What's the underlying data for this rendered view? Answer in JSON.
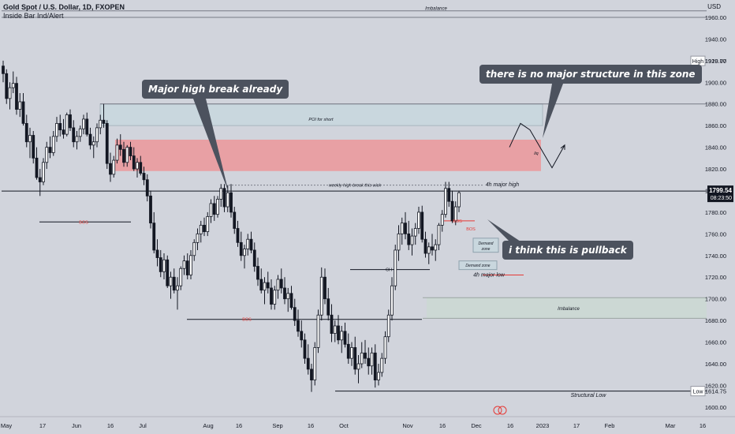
{
  "header": {
    "symbol_title": "Gold Spot / U.S. Dollar, 1D, FXOPEN",
    "indicator": "Inside Bar Ind/Alert"
  },
  "price_axis": {
    "currency": "USD"
  },
  "colors": {
    "background": "#d1d4dc",
    "candle": "#131722",
    "supply_zone": "#e8a0a4",
    "poi_zone": "#c9d7de",
    "imbalance_zone": "#ccd8d4",
    "demand_zone": "#c9d7de",
    "bos_label": "#e53935",
    "callout_bg": "#4c525e"
  },
  "callouts": [
    {
      "text": "Major high break already"
    },
    {
      "text": "there is no major structure in this zone"
    },
    {
      "text": "i think this is pullback"
    }
  ],
  "labels": {
    "imbalance_top": "Imbalance",
    "poi_for_short": "POI for short",
    "weekly_high_break": "weekly high break this wick",
    "four_h_major_high": "4h major high",
    "four_h_major_low": "4h major low",
    "demand_zone_a": "Demand zone",
    "demand_zone_b": "Demand zone",
    "imbalance_right": "Imbalance",
    "structural_low": "Structural Low",
    "bos_1": "BOS",
    "bos_2": "BOS",
    "bos_3": "BOS",
    "bos_4": "BOS",
    "ch": "CH",
    "liq": "liq",
    "high_tag": "High",
    "low_tag": "Low",
    "current_countdown": "08:23:50"
  },
  "chart_data": {
    "type": "candlestick",
    "symbol": "Gold Spot / U.S. Dollar",
    "timeframe": "1D",
    "y_axis": {
      "ticks": [
        1600,
        1620,
        1640,
        1660,
        1680,
        1700,
        1720,
        1740,
        1760,
        1780,
        1800,
        1820,
        1840,
        1860,
        1880,
        1900,
        1920,
        1940,
        1960
      ],
      "tick_labels": [
        "1600.00",
        "1620.00",
        "1640.00",
        "1660.00",
        "1680.00",
        "1700.00",
        "1720.00",
        "1740.00",
        "1760.00",
        "1780.00",
        "1800.00",
        "1820.00",
        "1840.00",
        "1860.00",
        "1880.00",
        "1900.00",
        "1920.00",
        "1940.00",
        "1960.00"
      ],
      "range": [
        1597,
        1976
      ]
    },
    "x_axis": {
      "tick_labels": [
        "May",
        "17",
        "Jun",
        "16",
        "Jul",
        "Aug",
        "16",
        "Sep",
        "16",
        "Oct",
        "Nov",
        "16",
        "Dec",
        "16",
        "2023",
        "17",
        "Feb",
        "Mar",
        "16"
      ]
    },
    "high_value": "1919.77",
    "low_value": "1614.75",
    "current_price": "1799.54",
    "levels": {
      "imbalance_top_line": 1966,
      "poi_short": [
        1860,
        1880
      ],
      "supply_zone": [
        1818,
        1847
      ],
      "weekly_high_line": 1805,
      "bos_1": 1771,
      "bos_2": 1681,
      "ch_line": 1727,
      "imbalance_right": [
        1682,
        1701
      ],
      "demand_zone_a": [
        1743,
        1756
      ],
      "demand_zone_b": [
        1727,
        1735
      ],
      "four_h_major_high": 1806,
      "four_h_major_low": 1722,
      "structural_low_line": 1614.75,
      "current_price_line": 1799.54
    },
    "candles": [
      [
        1915,
        1920,
        1900,
        1908
      ],
      [
        1908,
        1912,
        1880,
        1885
      ],
      [
        1885,
        1900,
        1875,
        1895
      ],
      [
        1895,
        1910,
        1890,
        1899
      ],
      [
        1899,
        1905,
        1870,
        1875
      ],
      [
        1875,
        1890,
        1868,
        1882
      ],
      [
        1882,
        1890,
        1860,
        1862
      ],
      [
        1862,
        1870,
        1840,
        1845
      ],
      [
        1845,
        1858,
        1830,
        1851
      ],
      [
        1851,
        1855,
        1825,
        1830
      ],
      [
        1830,
        1840,
        1810,
        1812
      ],
      [
        1812,
        1820,
        1795,
        1808
      ],
      [
        1808,
        1830,
        1805,
        1826
      ],
      [
        1826,
        1845,
        1820,
        1840
      ],
      [
        1840,
        1850,
        1830,
        1835
      ],
      [
        1835,
        1855,
        1832,
        1850
      ],
      [
        1850,
        1868,
        1845,
        1862
      ],
      [
        1862,
        1870,
        1850,
        1856
      ],
      [
        1856,
        1866,
        1848,
        1852
      ],
      [
        1852,
        1872,
        1850,
        1870
      ],
      [
        1870,
        1875,
        1855,
        1858
      ],
      [
        1858,
        1865,
        1840,
        1845
      ],
      [
        1845,
        1855,
        1838,
        1850
      ],
      [
        1850,
        1860,
        1845,
        1857
      ],
      [
        1857,
        1870,
        1852,
        1866
      ],
      [
        1866,
        1872,
        1850,
        1852
      ],
      [
        1852,
        1858,
        1838,
        1842
      ],
      [
        1842,
        1850,
        1830,
        1845
      ],
      [
        1845,
        1862,
        1840,
        1858
      ],
      [
        1858,
        1870,
        1852,
        1865
      ],
      [
        1865,
        1880,
        1858,
        1862
      ],
      [
        1862,
        1865,
        1820,
        1825
      ],
      [
        1825,
        1835,
        1808,
        1815
      ],
      [
        1815,
        1832,
        1812,
        1828
      ],
      [
        1828,
        1848,
        1825,
        1842
      ],
      [
        1842,
        1852,
        1832,
        1838
      ],
      [
        1838,
        1845,
        1822,
        1826
      ],
      [
        1826,
        1842,
        1822,
        1840
      ],
      [
        1840,
        1845,
        1828,
        1832
      ],
      [
        1832,
        1840,
        1818,
        1820
      ],
      [
        1820,
        1830,
        1812,
        1826
      ],
      [
        1826,
        1832,
        1814,
        1816
      ],
      [
        1816,
        1822,
        1805,
        1810
      ],
      [
        1810,
        1815,
        1790,
        1795
      ],
      [
        1795,
        1800,
        1765,
        1770
      ],
      [
        1770,
        1780,
        1742,
        1745
      ],
      [
        1745,
        1755,
        1730,
        1738
      ],
      [
        1738,
        1745,
        1720,
        1725
      ],
      [
        1725,
        1742,
        1718,
        1736
      ],
      [
        1736,
        1740,
        1710,
        1712
      ],
      [
        1712,
        1725,
        1700,
        1720
      ],
      [
        1720,
        1728,
        1705,
        1708
      ],
      [
        1708,
        1720,
        1690,
        1712
      ],
      [
        1712,
        1730,
        1708,
        1728
      ],
      [
        1728,
        1740,
        1722,
        1735
      ],
      [
        1735,
        1742,
        1718,
        1722
      ],
      [
        1722,
        1745,
        1718,
        1740
      ],
      [
        1740,
        1755,
        1735,
        1752
      ],
      [
        1752,
        1765,
        1745,
        1760
      ],
      [
        1760,
        1772,
        1752,
        1768
      ],
      [
        1768,
        1775,
        1758,
        1762
      ],
      [
        1762,
        1780,
        1758,
        1776
      ],
      [
        1776,
        1792,
        1770,
        1788
      ],
      [
        1788,
        1795,
        1772,
        1778
      ],
      [
        1778,
        1795,
        1775,
        1792
      ],
      [
        1792,
        1806,
        1785,
        1802
      ],
      [
        1802,
        1806,
        1780,
        1785
      ],
      [
        1785,
        1805,
        1780,
        1798
      ],
      [
        1798,
        1806,
        1775,
        1780
      ],
      [
        1780,
        1785,
        1760,
        1765
      ],
      [
        1765,
        1772,
        1748,
        1752
      ],
      [
        1752,
        1762,
        1735,
        1740
      ],
      [
        1740,
        1750,
        1728,
        1746
      ],
      [
        1746,
        1760,
        1740,
        1755
      ],
      [
        1755,
        1762,
        1742,
        1745
      ],
      [
        1745,
        1752,
        1725,
        1730
      ],
      [
        1730,
        1738,
        1712,
        1718
      ],
      [
        1718,
        1728,
        1705,
        1708
      ],
      [
        1708,
        1720,
        1695,
        1715
      ],
      [
        1715,
        1725,
        1705,
        1710
      ],
      [
        1710,
        1718,
        1690,
        1695
      ],
      [
        1695,
        1712,
        1690,
        1708
      ],
      [
        1708,
        1722,
        1700,
        1718
      ],
      [
        1718,
        1728,
        1705,
        1710
      ],
      [
        1710,
        1720,
        1695,
        1700
      ],
      [
        1700,
        1710,
        1688,
        1705
      ],
      [
        1705,
        1712,
        1690,
        1692
      ],
      [
        1692,
        1700,
        1675,
        1680
      ],
      [
        1680,
        1690,
        1665,
        1670
      ],
      [
        1670,
        1680,
        1655,
        1662
      ],
      [
        1662,
        1668,
        1640,
        1645
      ],
      [
        1645,
        1658,
        1630,
        1635
      ],
      [
        1635,
        1640,
        1614,
        1625
      ],
      [
        1625,
        1660,
        1620,
        1655
      ],
      [
        1655,
        1690,
        1650,
        1685
      ],
      [
        1685,
        1729,
        1680,
        1720
      ],
      [
        1720,
        1728,
        1695,
        1700
      ],
      [
        1700,
        1710,
        1680,
        1685
      ],
      [
        1685,
        1695,
        1660,
        1668
      ],
      [
        1668,
        1680,
        1660,
        1675
      ],
      [
        1675,
        1685,
        1658,
        1662
      ],
      [
        1662,
        1675,
        1650,
        1670
      ],
      [
        1670,
        1678,
        1655,
        1658
      ],
      [
        1658,
        1668,
        1640,
        1645
      ],
      [
        1645,
        1660,
        1638,
        1655
      ],
      [
        1655,
        1665,
        1630,
        1635
      ],
      [
        1635,
        1648,
        1622,
        1640
      ],
      [
        1640,
        1660,
        1636,
        1650
      ],
      [
        1650,
        1662,
        1640,
        1645
      ],
      [
        1645,
        1655,
        1630,
        1638
      ],
      [
        1638,
        1655,
        1630,
        1650
      ],
      [
        1650,
        1658,
        1618,
        1625
      ],
      [
        1625,
        1640,
        1620,
        1632
      ],
      [
        1632,
        1650,
        1628,
        1645
      ],
      [
        1645,
        1670,
        1640,
        1665
      ],
      [
        1665,
        1690,
        1660,
        1685
      ],
      [
        1685,
        1720,
        1680,
        1712
      ],
      [
        1712,
        1750,
        1708,
        1745
      ],
      [
        1745,
        1768,
        1735,
        1760
      ],
      [
        1760,
        1775,
        1750,
        1770
      ],
      [
        1770,
        1780,
        1755,
        1760
      ],
      [
        1760,
        1772,
        1745,
        1750
      ],
      [
        1750,
        1765,
        1740,
        1758
      ],
      [
        1758,
        1770,
        1750,
        1765
      ],
      [
        1765,
        1785,
        1760,
        1780
      ],
      [
        1780,
        1786,
        1752,
        1755
      ],
      [
        1755,
        1762,
        1738,
        1742
      ],
      [
        1742,
        1752,
        1732,
        1748
      ],
      [
        1748,
        1760,
        1740,
        1745
      ],
      [
        1745,
        1755,
        1735,
        1750
      ],
      [
        1750,
        1770,
        1745,
        1768
      ],
      [
        1768,
        1782,
        1762,
        1778
      ],
      [
        1778,
        1808,
        1775,
        1802
      ],
      [
        1802,
        1808,
        1785,
        1790
      ],
      [
        1790,
        1800,
        1770,
        1772
      ],
      [
        1772,
        1790,
        1768,
        1785
      ],
      [
        1785,
        1800,
        1780,
        1798
      ]
    ],
    "projection_path": [
      [
        1840,
        1862,
        1880
      ],
      [
        1880,
        1860,
        1822
      ],
      [
        1822,
        1842
      ]
    ]
  }
}
